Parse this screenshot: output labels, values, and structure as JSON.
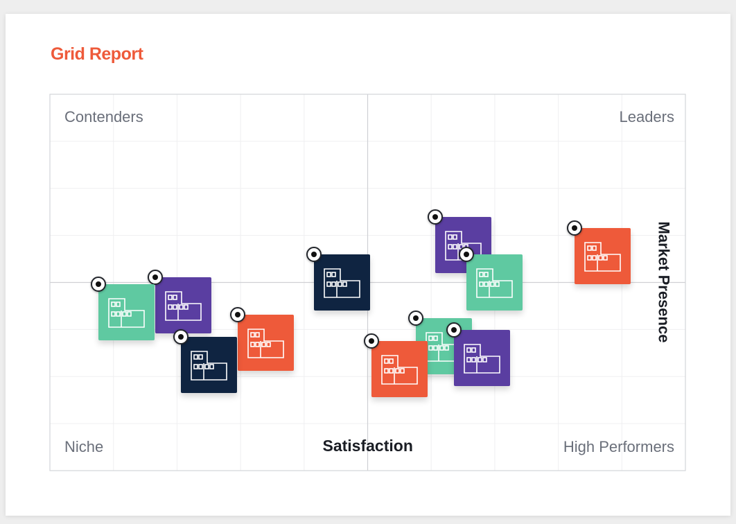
{
  "title": "Grid Report",
  "colors": {
    "accent": "#ee5a3a",
    "navy": "#0f2441",
    "purple": "#5a3ea1",
    "green": "#5fc9a1",
    "orange": "#ee5a3a"
  },
  "chart_data": {
    "type": "scatter",
    "xlabel": "Satisfaction",
    "ylabel": "Market Presence",
    "quadrants": {
      "top_left": "Contenders",
      "top_right": "Leaders",
      "bottom_left": "Niche",
      "bottom_right": "High Performers"
    },
    "xlim": [
      0,
      1
    ],
    "ylim": [
      0,
      1
    ],
    "grid": true,
    "points": [
      {
        "x": 0.46,
        "y": 0.5,
        "color": "navy",
        "icon": "building-icon"
      },
      {
        "x": 0.65,
        "y": 0.6,
        "color": "purple",
        "icon": "building-icon"
      },
      {
        "x": 0.87,
        "y": 0.57,
        "color": "orange",
        "icon": "building-icon"
      },
      {
        "x": 0.7,
        "y": 0.5,
        "color": "green",
        "icon": "building-icon"
      },
      {
        "x": 0.21,
        "y": 0.44,
        "color": "purple",
        "icon": "building-icon"
      },
      {
        "x": 0.12,
        "y": 0.42,
        "color": "green",
        "icon": "building-icon"
      },
      {
        "x": 0.34,
        "y": 0.34,
        "color": "orange",
        "icon": "building-icon"
      },
      {
        "x": 0.25,
        "y": 0.28,
        "color": "navy",
        "icon": "building-icon"
      },
      {
        "x": 0.62,
        "y": 0.33,
        "color": "green",
        "icon": "building-icon"
      },
      {
        "x": 0.68,
        "y": 0.3,
        "color": "purple",
        "icon": "building-icon"
      },
      {
        "x": 0.55,
        "y": 0.27,
        "color": "orange",
        "icon": "building-icon"
      }
    ]
  }
}
